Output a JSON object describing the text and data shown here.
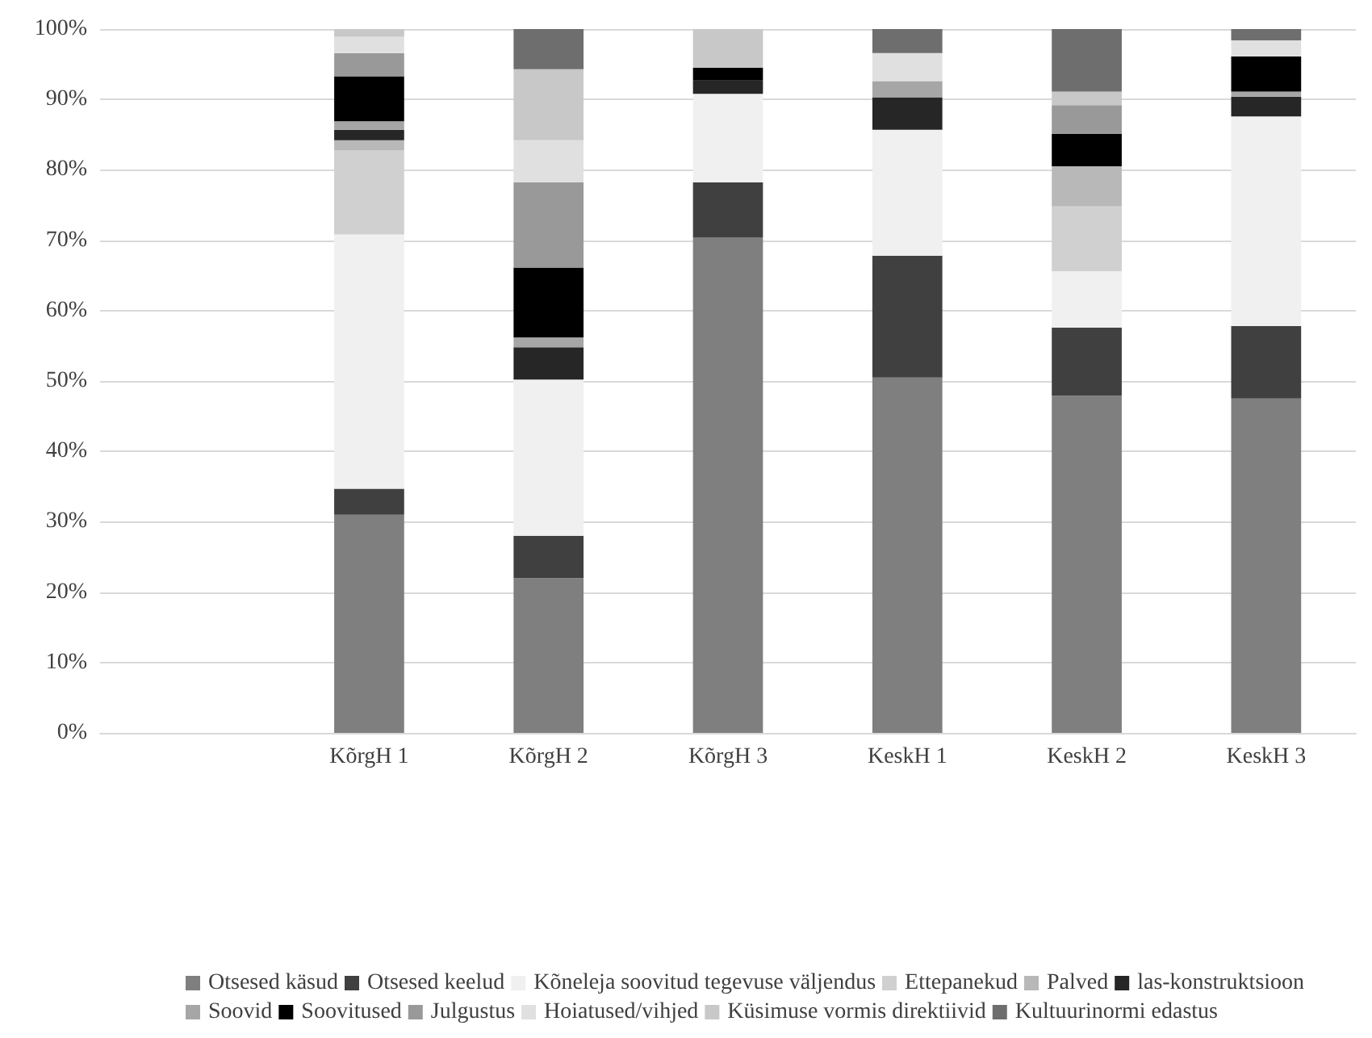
{
  "chart_data": {
    "type": "bar",
    "stacked": true,
    "categories": [
      null,
      "KõrgH 1",
      "KõrgH 2",
      "KõrgH 3",
      "KeskH 1",
      "KeskH 2",
      "KeskH 3"
    ],
    "series": [
      {
        "name": "Otsesed käsud",
        "color": "#7f7f7f",
        "values": [
          null,
          31,
          22,
          70.4,
          50.5,
          47.9,
          47.5
        ]
      },
      {
        "name": "Otsesed keelud",
        "color": "#404040",
        "values": [
          null,
          3.7,
          6,
          7.8,
          17.3,
          9.7,
          10.3
        ]
      },
      {
        "name": "Kõneleja soovitud tegevuse väljendus",
        "color": "#f0f0f0",
        "values": [
          null,
          36.1,
          22.2,
          12.6,
          17.9,
          8,
          29.8
        ]
      },
      {
        "name": "Ettepanekud",
        "color": "#d0d0d0",
        "values": [
          null,
          12,
          0,
          0,
          0,
          9.2,
          0
        ]
      },
      {
        "name": "Palved",
        "color": "#b8b8b8",
        "values": [
          null,
          1.4,
          0,
          0,
          0,
          5.7,
          0
        ]
      },
      {
        "name": "las-konstruktsioon",
        "color": "#262626",
        "values": [
          null,
          1.5,
          4.6,
          1.9,
          4.6,
          0,
          2.8
        ]
      },
      {
        "name": "Soovid",
        "color": "#a6a6a6",
        "values": [
          null,
          1.2,
          1.4,
          0,
          2.3,
          0,
          0.7
        ]
      },
      {
        "name": "Soovitused",
        "color": "#000000",
        "values": [
          null,
          6.4,
          9.9,
          1.8,
          0,
          4.6,
          5
        ]
      },
      {
        "name": "Julgustus",
        "color": "#999999",
        "values": [
          null,
          3.3,
          12.1,
          0,
          0,
          4.1,
          0
        ]
      },
      {
        "name": "Hoiatused/vihjed",
        "color": "#e0e0e0",
        "values": [
          null,
          2.3,
          6,
          0,
          4,
          0,
          2.3
        ]
      },
      {
        "name": "Küsimuse vormis direktiivid",
        "color": "#c8c8c8",
        "values": [
          null,
          1.1,
          10.1,
          5.5,
          0,
          1.9,
          0
        ]
      },
      {
        "name": "Kultuurinormi edastus",
        "color": "#6e6e6e",
        "values": [
          null,
          0,
          5.7,
          0,
          3.4,
          8.9,
          1.6
        ]
      }
    ],
    "ylim": [
      0,
      100
    ],
    "yticks": [
      {
        "value": 0,
        "label": "0%"
      },
      {
        "value": 10,
        "label": "10%"
      },
      {
        "value": 20,
        "label": "20%"
      },
      {
        "value": 30,
        "label": "30%"
      },
      {
        "value": 40,
        "label": "40%"
      },
      {
        "value": 50,
        "label": "50%"
      },
      {
        "value": 60,
        "label": "60%"
      },
      {
        "value": 70,
        "label": "70%"
      },
      {
        "value": 80,
        "label": "80%"
      },
      {
        "value": 90,
        "label": "90%"
      },
      {
        "value": 100,
        "label": "100%"
      }
    ],
    "grid": "y",
    "legend": "bottom"
  }
}
